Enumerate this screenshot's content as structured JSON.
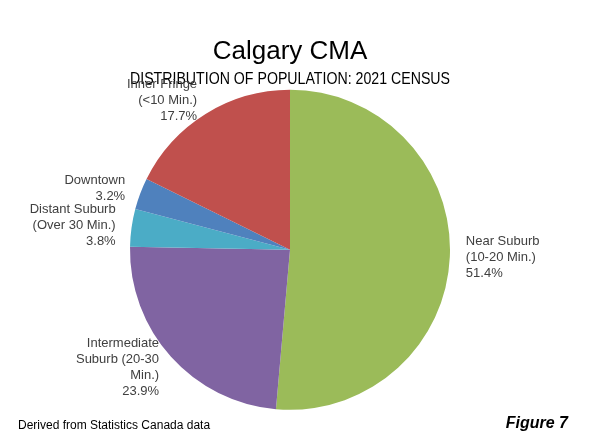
{
  "chart_data": {
    "type": "pie",
    "title": "Calgary CMA",
    "subtitle": "DISTRIBUTION OF POPULATION: 2021 CENSUS",
    "categories": [
      "Near Suburb (10-20 Min.)",
      "Intermediate Suburb (20-30 Min.)",
      "Distant Suburb (Over 30 Min.)",
      "Downtown",
      "Inner Fringe (<10 Min.)"
    ],
    "values": [
      51.4,
      23.9,
      3.8,
      3.2,
      17.7
    ],
    "value_labels": [
      "51.4%",
      "23.9%",
      "3.8%",
      "3.2%",
      "17.7%"
    ],
    "colors": [
      "#9bbb59",
      "#8064a2",
      "#4bacc6",
      "#4f81bd",
      "#c0504d"
    ],
    "data_labels": true,
    "source": "Derived from Statistics Canada data",
    "figure": "Figure 7"
  }
}
